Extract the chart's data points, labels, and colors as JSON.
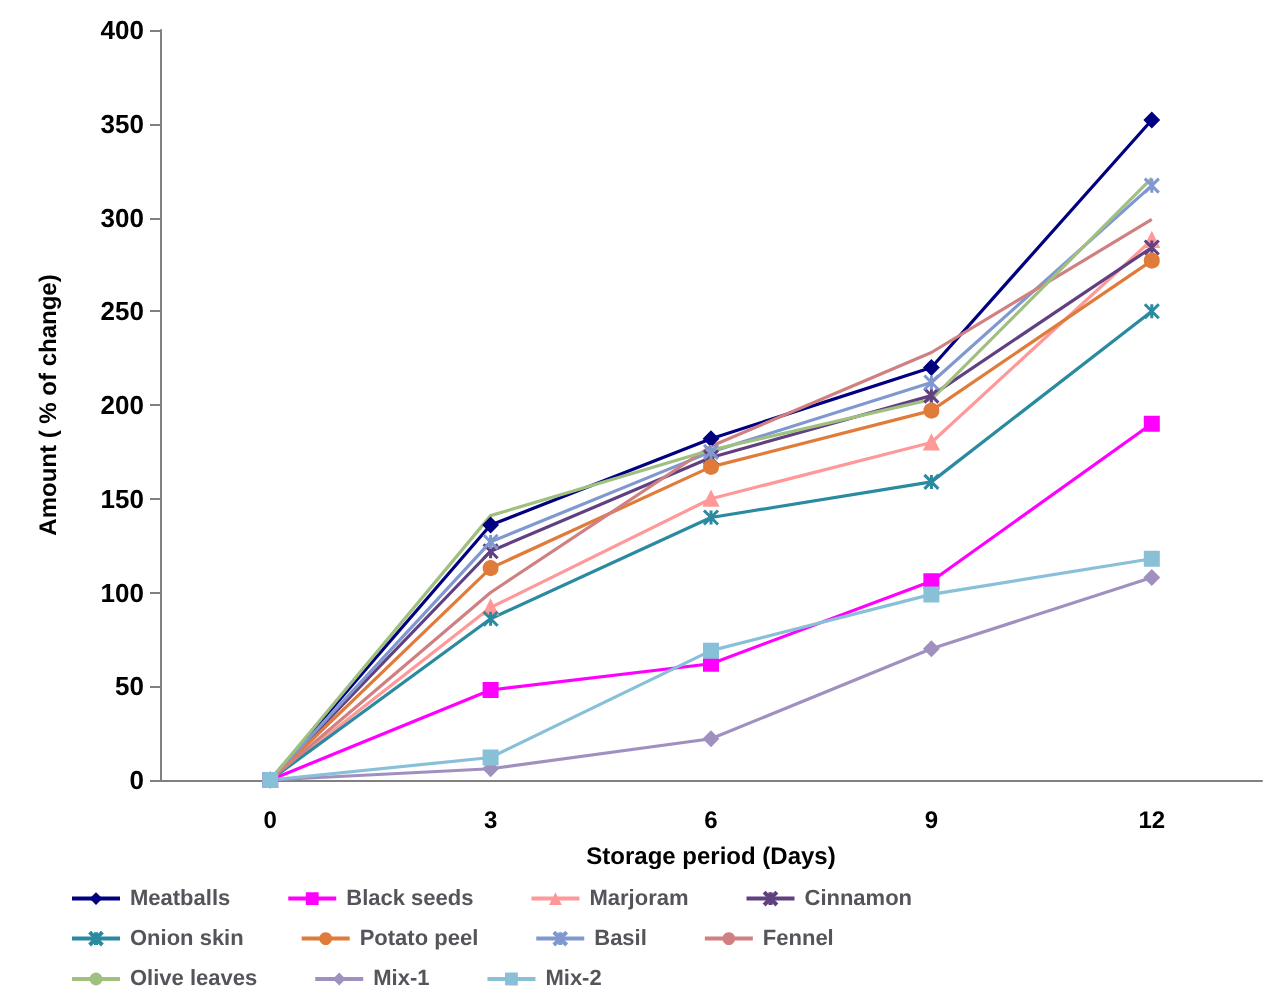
{
  "chart_data": {
    "type": "line",
    "xlabel": "Storage period (Days)",
    "ylabel": "Amount ( % of change)",
    "categories": [
      "0",
      "3",
      "6",
      "9",
      "12"
    ],
    "ylim": [
      0,
      400
    ],
    "yticks": [
      0,
      50,
      100,
      150,
      200,
      250,
      300,
      350,
      400
    ],
    "grid": false,
    "legend": "bottom",
    "series": [
      {
        "name": "Meatballs",
        "color": "#000080",
        "marker": "diamond",
        "values": [
          0,
          136,
          182,
          220,
          352
        ]
      },
      {
        "name": "Black seeds",
        "color": "#ff00ff",
        "marker": "square",
        "values": [
          0,
          48,
          62,
          106,
          190
        ]
      },
      {
        "name": "Marjoram",
        "color": "#ff9999",
        "marker": "triangle",
        "values": [
          0,
          92,
          150,
          180,
          288
        ]
      },
      {
        "name": "Cinnamon",
        "color": "#604080",
        "marker": "cross",
        "values": [
          0,
          122,
          172,
          205,
          284
        ]
      },
      {
        "name": "Onion skin",
        "color": "#2a8aa0",
        "marker": "cross",
        "values": [
          0,
          86,
          140,
          159,
          250
        ]
      },
      {
        "name": "Potato peel",
        "color": "#e07b39",
        "marker": "circle",
        "values": [
          0,
          113,
          167,
          197,
          277
        ]
      },
      {
        "name": "Basil",
        "color": "#8098d0",
        "marker": "cross",
        "values": [
          0,
          127,
          175,
          212,
          317
        ]
      },
      {
        "name": "Fennel",
        "color": "#d08080",
        "marker": "none",
        "values": [
          0,
          100,
          178,
          228,
          299
        ]
      },
      {
        "name": "Olive leaves",
        "color": "#a0c080",
        "marker": "none",
        "values": [
          0,
          141,
          176,
          203,
          321
        ]
      },
      {
        "name": "Mix-1",
        "color": "#a090c0",
        "marker": "diamond",
        "values": [
          0,
          6,
          22,
          70,
          108
        ]
      },
      {
        "name": "Mix-2",
        "color": "#88c0d8",
        "marker": "square",
        "values": [
          0,
          12,
          69,
          99,
          118
        ]
      }
    ]
  }
}
